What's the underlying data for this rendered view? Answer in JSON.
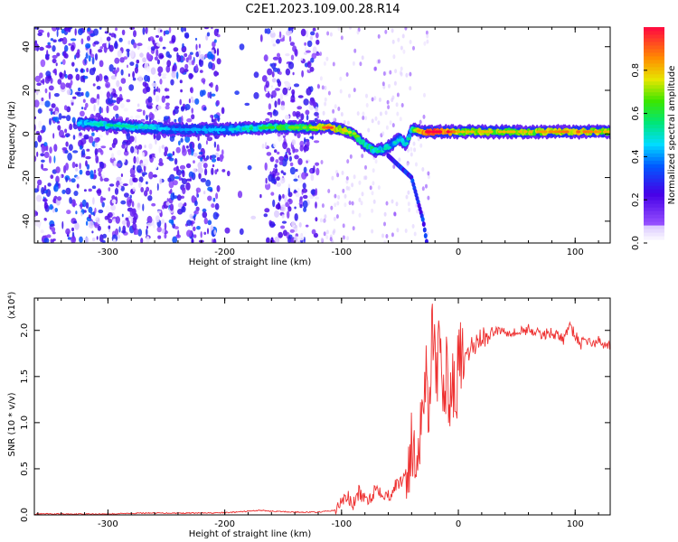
{
  "title": "C2E1.2023.109.00.28.R14",
  "chart_data": [
    {
      "type": "heatmap",
      "xlabel": "Height of straight line (km)",
      "ylabel": "Frequency (Hz)",
      "xlim": [
        -363,
        130
      ],
      "ylim": [
        -50,
        49
      ],
      "xticks": [
        -300,
        -200,
        -100,
        0,
        100
      ],
      "yticks": [
        -40,
        -20,
        0,
        20,
        40
      ],
      "xtick_labels": [
        "-300",
        "-200",
        "-100",
        "0",
        "100"
      ],
      "ytick_labels": [
        "-40",
        "-20",
        "0",
        "20",
        "40"
      ],
      "colorbar": {
        "label": "Normalized spectral amplitude",
        "range": [
          0,
          1
        ],
        "ticks": [
          0.0,
          0.2,
          0.4,
          0.6,
          0.8
        ],
        "tick_labels": [
          "0.0",
          "0.2",
          "0.4",
          "0.6",
          "0.8"
        ],
        "colormap": "rainbow"
      },
      "ridge": {
        "name": "",
        "x": [
          -325,
          -300,
          -270,
          -240,
          -200,
          -160,
          -130,
          -110,
          -100,
          -90,
          -80,
          -70,
          -60,
          -50,
          -45,
          -40,
          -30,
          -20,
          -10,
          0,
          30,
          60,
          100,
          130
        ],
        "y": [
          5,
          4,
          3,
          2,
          2,
          3,
          3,
          3,
          2,
          0,
          -5,
          -8,
          -6,
          -2,
          -5,
          2,
          1,
          1,
          1,
          1,
          1,
          1,
          1,
          1
        ],
        "amplitude": [
          0.35,
          0.45,
          0.4,
          0.3,
          0.35,
          0.55,
          0.6,
          0.85,
          0.7,
          0.6,
          0.5,
          0.45,
          0.4,
          0.4,
          0.4,
          0.5,
          0.9,
          0.95,
          0.9,
          0.7,
          0.7,
          0.7,
          0.8,
          0.7
        ]
      },
      "branch": {
        "x": [
          -60,
          -50,
          -40,
          -35,
          -30,
          -27
        ],
        "y": [
          -10,
          -15,
          -20,
          -30,
          -40,
          -50
        ]
      }
    },
    {
      "type": "line",
      "xlabel": "Height of straight line (km)",
      "ylabel": "SNR (10 * v/v)",
      "multiplier": "(x10⁴)",
      "xlim": [
        -363,
        130
      ],
      "ylim": [
        0,
        2.35
      ],
      "xticks": [
        -300,
        -200,
        -100,
        0,
        100
      ],
      "yticks": [
        0.0,
        0.5,
        1.0,
        1.5,
        2.0
      ],
      "xtick_labels": [
        "-300",
        "-200",
        "-100",
        "0",
        "100"
      ],
      "ytick_labels": [
        "0.0",
        "0.5",
        "1.0",
        "1.5",
        "2.0"
      ],
      "color": "#ee3030",
      "series": [
        {
          "name": "",
          "x": [
            -363,
            -330,
            -300,
            -270,
            -240,
            -210,
            -190,
            -170,
            -160,
            -140,
            -120,
            -105,
            -100,
            -95,
            -90,
            -85,
            -80,
            -75,
            -70,
            -65,
            -60,
            -55,
            -50,
            -45,
            -40,
            -37,
            -34,
            -31,
            -28,
            -25,
            -22,
            -19,
            -16,
            -13,
            -10,
            -7,
            -4,
            -1,
            2,
            5,
            10,
            15,
            20,
            25,
            30,
            40,
            50,
            60,
            70,
            80,
            90,
            95,
            100,
            105,
            110,
            115,
            120,
            125,
            130
          ],
          "y": [
            0.01,
            0.01,
            0.01,
            0.02,
            0.02,
            0.02,
            0.03,
            0.05,
            0.04,
            0.03,
            0.03,
            0.05,
            0.15,
            0.2,
            0.1,
            0.25,
            0.15,
            0.2,
            0.3,
            0.25,
            0.2,
            0.3,
            0.35,
            0.45,
            0.7,
            0.5,
            0.9,
            1.1,
            1.6,
            1.2,
            2.2,
            1.3,
            1.8,
            1.4,
            1.5,
            1.4,
            1.3,
            1.5,
            1.7,
            1.6,
            1.8,
            1.85,
            1.95,
            1.9,
            2.0,
            2.0,
            1.97,
            2.02,
            1.95,
            1.98,
            1.9,
            2.05,
            1.95,
            1.85,
            1.9,
            1.85,
            1.88,
            1.85,
            1.85
          ]
        }
      ]
    }
  ]
}
